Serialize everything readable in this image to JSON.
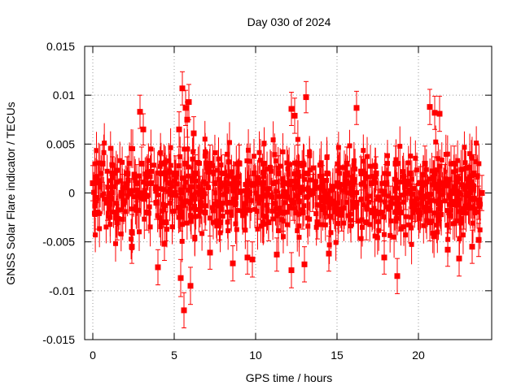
{
  "chart_data": {
    "type": "scatter",
    "title": "Day 030 of 2024",
    "xlabel": "GPS time / hours",
    "ylabel": "GNSS Solar Flare indicator / TECUs",
    "xlim": [
      -0.5,
      24.5
    ],
    "ylim": [
      -0.015,
      0.015
    ],
    "x_ticks": [
      0,
      5,
      10,
      15,
      20
    ],
    "x_tick_labels": [
      "0",
      "5",
      "10",
      "15",
      "20"
    ],
    "y_ticks": [
      -0.015,
      -0.01,
      -0.005,
      0,
      0.005,
      0.01,
      0.015
    ],
    "y_tick_labels": [
      "-0.015",
      "-0.01",
      "-0.005",
      "0",
      "0.005",
      "0.01",
      "0.015"
    ],
    "grid": true,
    "marker": "square",
    "error_bars": true,
    "series": [
      {
        "color": "#ff0000",
        "x": [
          0.0,
          0.3,
          0.6,
          0.9,
          1.2,
          1.5,
          1.8,
          2.1,
          2.4,
          2.7,
          3.0,
          3.3,
          3.6,
          3.9,
          4.2,
          4.5,
          4.8,
          5.1,
          5.4,
          5.7,
          6.0,
          6.3,
          6.6,
          6.9,
          7.2,
          7.5,
          7.8,
          8.1,
          8.4,
          8.7,
          9.0,
          9.3,
          9.6,
          9.9,
          10.2,
          10.5,
          10.8,
          11.1,
          11.4,
          11.7,
          12.0,
          12.3,
          12.6,
          12.9,
          13.2,
          13.5,
          13.8,
          14.1,
          14.4,
          14.7,
          15.0,
          15.3,
          15.6,
          15.9,
          16.2,
          16.5,
          16.8,
          17.1,
          17.4,
          17.7,
          18.0,
          18.3,
          18.6,
          18.9,
          19.2,
          19.5,
          19.8,
          20.1,
          20.4,
          20.7,
          21.0,
          21.3,
          21.6,
          21.9,
          22.2,
          22.5,
          22.8,
          23.1,
          23.4,
          23.7,
          23.9,
          2.9,
          3.1,
          5.4,
          5.5,
          5.7,
          5.9,
          6.0,
          5.3,
          5.6,
          6.2,
          5.8,
          12.2,
          12.4,
          13.1,
          16.2,
          20.7,
          21.0,
          21.3,
          18.7,
          12.2,
          13.0,
          9.5,
          8.6,
          2.4,
          4.0,
          4.4,
          7.2,
          9.8,
          11.3,
          14.5,
          17.9,
          21.8,
          22.5,
          23.3,
          23.7
        ],
        "y": [
          0.001,
          -0.002,
          0.003,
          -0.001,
          0.002,
          -0.003,
          0.0,
          0.002,
          -0.004,
          0.001,
          0.003,
          -0.002,
          0.001,
          -0.001,
          0.002,
          -0.003,
          0.001,
          0.002,
          -0.002,
          0.003,
          -0.001,
          0.002,
          0.0,
          -0.002,
          0.003,
          0.001,
          -0.003,
          0.002,
          -0.001,
          0.001,
          0.003,
          -0.002,
          0.0,
          0.002,
          -0.001,
          0.003,
          -0.003,
          0.001,
          0.002,
          -0.002,
          0.001,
          -0.001,
          0.003,
          -0.002,
          0.002,
          0.0,
          -0.003,
          0.001,
          0.002,
          -0.001,
          0.001,
          -0.002,
          0.003,
          0.0,
          -0.001,
          0.002,
          -0.003,
          0.001,
          0.002,
          -0.002,
          0.001,
          -0.001,
          0.003,
          -0.002,
          0.0,
          0.002,
          -0.001,
          0.001,
          0.003,
          -0.003,
          0.002,
          -0.001,
          0.001,
          -0.002,
          0.003,
          0.0,
          -0.002,
          0.001,
          0.002,
          -0.001,
          0.0,
          0.0083,
          0.0065,
          -0.0087,
          0.0107,
          0.0087,
          0.0093,
          -0.0095,
          0.0065,
          -0.012,
          0.0061,
          0.0075,
          0.0086,
          0.0079,
          0.0098,
          0.0087,
          0.0088,
          0.0082,
          0.0081,
          -0.0085,
          -0.0079,
          -0.0073,
          -0.0066,
          -0.0072,
          -0.0055,
          -0.0076,
          -0.0052,
          -0.0061,
          -0.0068,
          -0.0063,
          -0.0062,
          -0.0066,
          -0.0058,
          -0.0067,
          -0.0055,
          -0.0048
        ],
        "err": [
          0.0018,
          0.0017,
          0.0019,
          0.0018,
          0.0017,
          0.0018,
          0.0019,
          0.0017,
          0.0018,
          0.0019,
          0.0017,
          0.0018,
          0.0019,
          0.0017,
          0.0018,
          0.0019,
          0.0017,
          0.0018,
          0.0019,
          0.0017,
          0.0018,
          0.0019,
          0.0017,
          0.0018,
          0.0019,
          0.0017,
          0.0018,
          0.0019,
          0.0017,
          0.0018,
          0.0019,
          0.0017,
          0.0018,
          0.0019,
          0.0017,
          0.0018,
          0.0019,
          0.0017,
          0.0018,
          0.0019,
          0.0017,
          0.0018,
          0.0019,
          0.0017,
          0.0018,
          0.0019,
          0.0017,
          0.0018,
          0.0019,
          0.0017,
          0.0018,
          0.0019,
          0.0017,
          0.0018,
          0.0019,
          0.0017,
          0.0018,
          0.0019,
          0.0017,
          0.0018,
          0.0019,
          0.0017,
          0.0018,
          0.0019,
          0.0017,
          0.0018,
          0.0019,
          0.0017,
          0.0018,
          0.0019,
          0.0017,
          0.0018,
          0.0019,
          0.0017,
          0.0018,
          0.0019,
          0.0017,
          0.0018,
          0.0019,
          0.0017,
          0.0018,
          0.0017,
          0.0016,
          0.0019,
          0.0017,
          0.0018,
          0.0018,
          0.0019,
          0.0018,
          0.0018,
          0.0017,
          0.0018,
          0.0017,
          0.0018,
          0.0016,
          0.0017,
          0.0018,
          0.0017,
          0.0018,
          0.0018,
          0.0018,
          0.0018,
          0.0017,
          0.0018,
          0.0017,
          0.0018,
          0.0017,
          0.0017,
          0.0018,
          0.0017,
          0.0018,
          0.0017,
          0.0017,
          0.0018,
          0.0017,
          0.0017
        ]
      }
    ]
  }
}
